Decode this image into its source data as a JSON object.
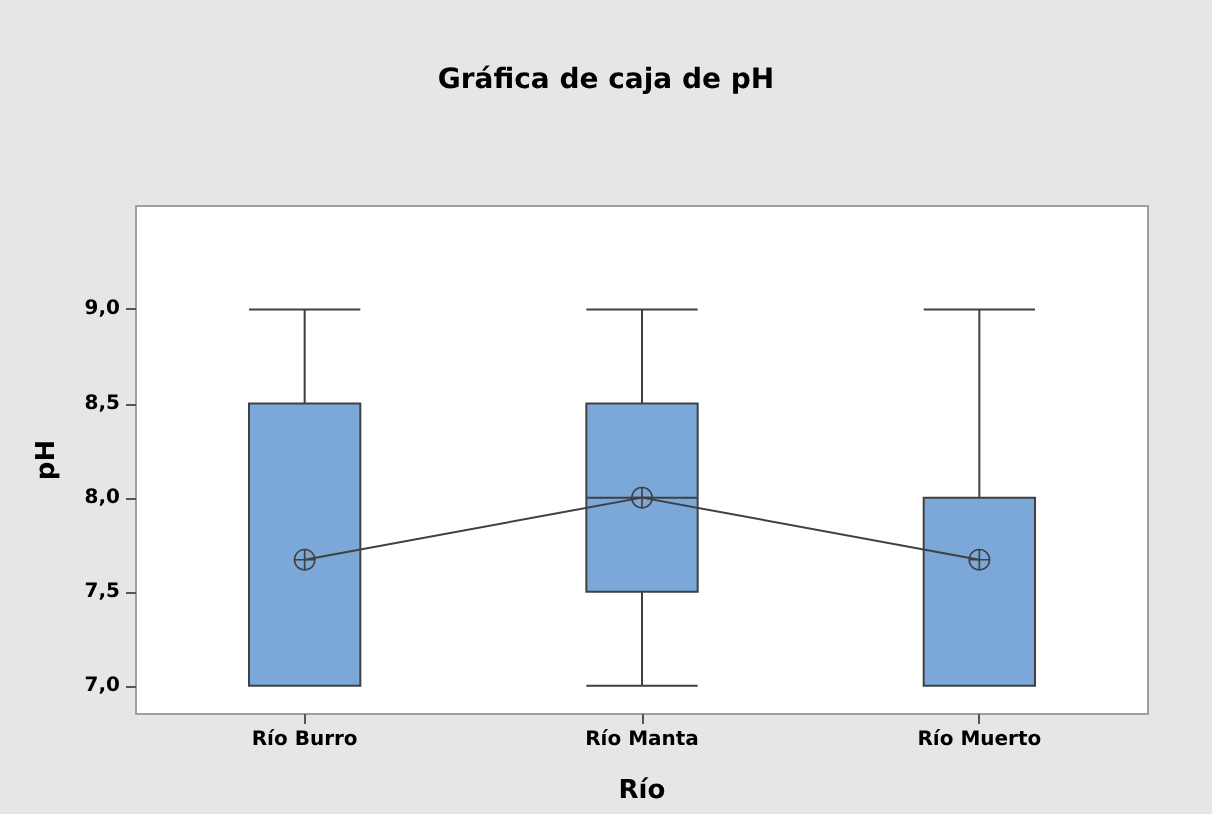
{
  "chart_data": {
    "type": "box",
    "title": "Gráfica de caja de pH",
    "xlabel": "Río",
    "ylabel": "pH",
    "categories": [
      "Río Burro",
      "Río Manta",
      "Río Muerto"
    ],
    "series": [
      {
        "color": "#7ba7d9",
        "boxes": [
          {
            "low": 7.0,
            "q1": 7.0,
            "median": 7.0,
            "q3": 8.5,
            "high": 9.0
          },
          {
            "low": 7.0,
            "q1": 7.5,
            "median": 8.0,
            "q3": 8.5,
            "high": 9.0
          },
          {
            "low": 7.0,
            "q1": 7.0,
            "median": 7.0,
            "q3": 8.0,
            "high": 9.0
          }
        ]
      },
      {
        "type": "line",
        "color": "#404040",
        "marker": "circle",
        "values": [
          7.67,
          8.0,
          7.67
        ]
      }
    ],
    "ylim": [
      6.85,
      9.55
    ],
    "yticks": [
      {
        "value": 7.0,
        "label": "7,0"
      },
      {
        "value": 7.5,
        "label": "7,5"
      },
      {
        "value": 8.0,
        "label": "8,0"
      },
      {
        "value": 8.5,
        "label": "8,5"
      },
      {
        "value": 9.0,
        "label": "9,0"
      }
    ],
    "grid": false
  }
}
